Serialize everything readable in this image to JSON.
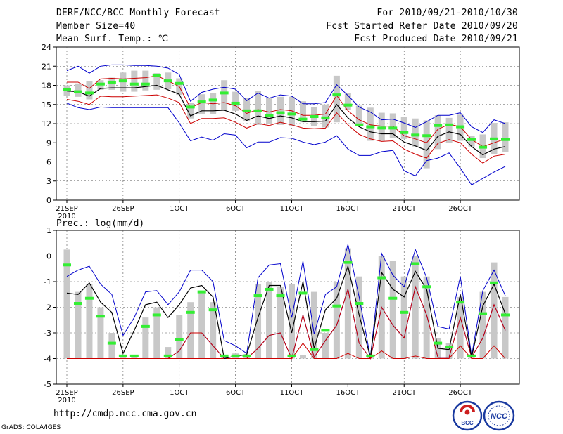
{
  "header": {
    "title": "DERF/NCC/BCC Monthly Forecast",
    "member_size": "Member Size=40",
    "variable": "Mean Surf. Temp.: ℃",
    "forecast_period": "For 2010/09/21-2010/10/30",
    "started_date": "Fcst Started Refer Date 2010/09/20",
    "produced_date": "Fcst Produced Date 2010/09/21"
  },
  "footer": {
    "url": "http://cmdp.ncc.cma.gov.cn",
    "credit": "GrADS: COLA/IGES",
    "logo_bcc": "BCC",
    "logo_ncc": "NCC"
  },
  "colors": {
    "mean": "#000000",
    "upper": "#0000cc",
    "lower": "#cc0000",
    "spread_band": "#cc0000",
    "median": "#33ee33",
    "box": "#c8c8c8"
  },
  "chart_data": [
    {
      "type": "box-ensemble",
      "title": "Mean Surf. Temp.: ℃",
      "ylabel": "",
      "ylim": [
        0,
        24
      ],
      "y_ticks": [
        0,
        3,
        6,
        9,
        12,
        15,
        18,
        21,
        24
      ],
      "xlim": [
        1,
        40
      ],
      "x_ticks": [
        {
          "day": 1,
          "label": "21SEP",
          "sublabel": "2010"
        },
        {
          "day": 6,
          "label": "26SEP"
        },
        {
          "day": 11,
          "label": "1OCT"
        },
        {
          "day": 16,
          "label": "6OCT"
        },
        {
          "day": 21,
          "label": "11OCT"
        },
        {
          "day": 26,
          "label": "16OCT"
        },
        {
          "day": 31,
          "label": "21OCT"
        },
        {
          "day": 36,
          "label": "26OCT"
        }
      ],
      "days": [
        1,
        2,
        3,
        4,
        5,
        6,
        7,
        8,
        9,
        10,
        11,
        12,
        13,
        14,
        15,
        16,
        17,
        18,
        19,
        20,
        21,
        22,
        23,
        24,
        25,
        26,
        27,
        28,
        29,
        30,
        31,
        32,
        33,
        34,
        35,
        36,
        37,
        38,
        39,
        40
      ],
      "box_low": [
        16.3,
        16.2,
        15.8,
        17.3,
        17.3,
        17.0,
        17.0,
        17.2,
        17.3,
        17.4,
        16.5,
        12.8,
        13.5,
        13.5,
        14.2,
        14.0,
        12.4,
        11.8,
        12.0,
        11.8,
        11.6,
        12.2,
        11.6,
        11.4,
        12.2,
        14.2,
        12.0,
        9.3,
        9.3,
        9.8,
        9.6,
        8.4,
        5.0,
        8.0,
        9.0,
        9.3,
        8.4,
        6.6,
        7.2,
        7.5
      ],
      "box_high": [
        18.0,
        18.3,
        18.7,
        18.8,
        19.2,
        20.0,
        20.3,
        20.3,
        19.9,
        20.0,
        19.1,
        15.2,
        16.6,
        16.8,
        18.8,
        17.0,
        16.0,
        17.1,
        16.0,
        16.2,
        16.2,
        15.5,
        14.6,
        15.0,
        19.5,
        16.8,
        14.8,
        14.5,
        13.7,
        13.6,
        13.0,
        12.8,
        12.5,
        13.3,
        12.9,
        13.4,
        10.1,
        10.3,
        12.1,
        12.2
      ],
      "median": [
        17.3,
        17.0,
        16.8,
        18.2,
        18.5,
        18.7,
        18.2,
        18.2,
        19.6,
        18.7,
        18.3,
        14.6,
        15.4,
        15.7,
        16.8,
        15.2,
        14.0,
        14.0,
        13.3,
        13.7,
        13.5,
        12.7,
        13.1,
        12.9,
        16.5,
        14.9,
        11.8,
        11.5,
        11.3,
        11.3,
        10.6,
        10.2,
        10.1,
        11.7,
        11.8,
        11.5,
        9.5,
        8.3,
        9.6,
        9.5
      ],
      "mean": [
        17.1,
        17.0,
        16.3,
        17.5,
        17.6,
        17.6,
        17.6,
        17.8,
        18.0,
        17.3,
        16.6,
        13.2,
        14.0,
        14.0,
        14.1,
        13.5,
        12.5,
        13.2,
        12.8,
        13.2,
        12.9,
        12.3,
        12.3,
        12.4,
        15.0,
        12.9,
        11.5,
        10.7,
        10.4,
        10.4,
        9.1,
        8.5,
        7.8,
        10.0,
        10.7,
        10.3,
        8.4,
        7.1,
        8.0,
        8.4
      ],
      "upper": [
        20.3,
        21.0,
        19.9,
        21.0,
        21.2,
        21.2,
        21.1,
        21.1,
        21.0,
        20.7,
        19.7,
        15.5,
        16.9,
        17.4,
        17.7,
        17.4,
        15.6,
        16.8,
        16.0,
        16.5,
        16.3,
        15.1,
        15.1,
        15.3,
        18.1,
        16.4,
        14.6,
        13.8,
        12.6,
        12.7,
        12.1,
        11.4,
        12.3,
        13.3,
        13.3,
        13.7,
        11.5,
        10.6,
        12.6,
        12.0
      ],
      "lower": [
        15.2,
        14.5,
        14.2,
        14.6,
        14.5,
        14.5,
        14.5,
        14.5,
        14.5,
        14.5,
        12.1,
        9.3,
        9.9,
        9.4,
        10.4,
        10.2,
        8.2,
        9.1,
        9.1,
        9.8,
        9.7,
        9.1,
        8.7,
        9.1,
        10.1,
        8.0,
        7.0,
        7.0,
        7.6,
        7.8,
        4.6,
        3.8,
        6.2,
        6.6,
        7.4,
        5.0,
        2.4,
        3.4,
        4.4,
        5.3
      ],
      "band_high": [
        18.5,
        18.5,
        17.5,
        19.0,
        19.1,
        19.0,
        19.1,
        19.2,
        19.5,
        18.7,
        17.8,
        14.5,
        15.3,
        15.1,
        15.3,
        14.8,
        13.6,
        14.2,
        13.8,
        14.2,
        14.0,
        13.3,
        13.3,
        13.5,
        16.4,
        14.0,
        12.6,
        11.8,
        11.6,
        11.6,
        10.1,
        9.6,
        9.0,
        11.1,
        11.9,
        11.5,
        9.5,
        8.4,
        9.0,
        9.6
      ],
      "band_low": [
        15.8,
        15.5,
        15.0,
        16.3,
        16.2,
        16.2,
        16.3,
        16.4,
        16.5,
        16.0,
        15.3,
        12.0,
        12.8,
        12.8,
        12.9,
        12.2,
        11.3,
        12.0,
        11.7,
        12.2,
        11.8,
        11.3,
        11.2,
        11.3,
        13.7,
        11.8,
        10.3,
        9.6,
        9.2,
        9.3,
        8.0,
        7.2,
        6.6,
        8.9,
        9.5,
        9.0,
        7.2,
        5.8,
        6.9,
        7.2
      ]
    },
    {
      "type": "box-ensemble",
      "title": "Prec.: log(mm/d)",
      "ylabel": "",
      "ylim": [
        -5,
        1
      ],
      "y_ticks": [
        -5,
        -4,
        -3,
        -2,
        -1,
        0,
        1
      ],
      "xlim": [
        1,
        40
      ],
      "x_ticks": [
        {
          "day": 1,
          "label": "21SEP",
          "sublabel": "2010"
        },
        {
          "day": 6,
          "label": "26SEP"
        },
        {
          "day": 11,
          "label": "1OCT"
        },
        {
          "day": 16,
          "label": "6OCT"
        },
        {
          "day": 21,
          "label": "11OCT"
        },
        {
          "day": 26,
          "label": "16OCT"
        },
        {
          "day": 31,
          "label": "21OCT"
        },
        {
          "day": 36,
          "label": "26OCT"
        }
      ],
      "days": [
        1,
        2,
        3,
        4,
        5,
        6,
        7,
        8,
        9,
        10,
        11,
        12,
        13,
        14,
        15,
        16,
        17,
        18,
        19,
        20,
        21,
        22,
        23,
        24,
        25,
        26,
        27,
        28,
        29,
        30,
        31,
        32,
        33,
        34,
        35,
        36,
        37,
        38,
        39,
        40
      ],
      "box_low": [
        -4.0,
        -4.0,
        -4.0,
        -4.0,
        -4.0,
        -4.0,
        -4.0,
        -4.0,
        -4.0,
        -4.0,
        -4.0,
        -4.0,
        -4.0,
        -4.0,
        -4.0,
        -4.0,
        -4.0,
        -4.0,
        -4.0,
        -4.0,
        -4.0,
        -4.0,
        -4.0,
        -4.0,
        -4.0,
        -4.0,
        -4.0,
        -4.0,
        -4.0,
        -4.0,
        -4.0,
        -4.0,
        -4.0,
        -4.0,
        -4.0,
        -4.0,
        -4.0,
        -4.0,
        -4.0,
        -4.0
      ],
      "box_high": [
        0.25,
        -1.4,
        -1.1,
        -2.0,
        -3.0,
        -3.9,
        -3.9,
        -2.4,
        -2.0,
        -3.55,
        -2.3,
        -1.8,
        -1.4,
        -1.8,
        -3.9,
        -3.8,
        -3.9,
        -1.1,
        -1.0,
        -1.2,
        -1.1,
        -3.85,
        -1.4,
        -3.0,
        -1.0,
        0.3,
        -0.8,
        -3.85,
        0.0,
        -0.2,
        -0.8,
        0.0,
        -0.8,
        -3.2,
        -3.4,
        -1.6,
        -3.85,
        -1.4,
        -0.25,
        -1.6
      ],
      "median": [
        -0.35,
        -1.85,
        -1.65,
        -2.35,
        -3.4,
        -3.9,
        -3.9,
        -2.75,
        -2.3,
        -3.9,
        -3.25,
        -2.2,
        -1.4,
        -2.1,
        -3.9,
        -3.9,
        -3.9,
        -1.55,
        -1.3,
        -1.55,
        -3.9,
        -1.45,
        -3.65,
        -2.9,
        -1.95,
        -0.25,
        -1.85,
        -3.9,
        -0.85,
        -1.65,
        -2.2,
        -0.3,
        -1.2,
        -3.4,
        -3.55,
        -1.8,
        -3.9,
        -2.25,
        -1.05,
        -2.3
      ],
      "mean": [
        -1.45,
        -1.5,
        -1.05,
        -1.8,
        -2.2,
        -3.8,
        -2.9,
        -1.9,
        -1.8,
        -2.4,
        -1.9,
        -1.25,
        -1.15,
        -1.6,
        -4.0,
        -3.9,
        -3.85,
        -2.4,
        -1.15,
        -1.15,
        -3.0,
        -1.0,
        -3.6,
        -2.1,
        -1.65,
        -0.4,
        -2.3,
        -3.95,
        -0.65,
        -1.3,
        -1.6,
        -0.6,
        -1.3,
        -3.6,
        -3.65,
        -1.5,
        -3.95,
        -1.95,
        -1.1,
        -2.25
      ],
      "upper": [
        -0.8,
        -0.55,
        -0.4,
        -1.1,
        -1.5,
        -3.1,
        -2.4,
        -1.4,
        -1.35,
        -1.9,
        -1.4,
        -0.55,
        -0.55,
        -1.0,
        -3.3,
        -3.5,
        -3.8,
        -0.85,
        -0.35,
        -0.3,
        -2.4,
        -0.2,
        -3.05,
        -1.5,
        -1.2,
        0.45,
        -1.6,
        -3.95,
        0.1,
        -0.75,
        -1.2,
        0.25,
        -0.85,
        -2.75,
        -2.85,
        -0.8,
        -3.9,
        -1.35,
        -0.55,
        -1.55
      ],
      "lower": [
        -4.0,
        -4.0,
        -4.0,
        -4.0,
        -4.0,
        -4.0,
        -4.0,
        -4.0,
        -4.0,
        -4.0,
        -3.7,
        -3.0,
        -3.0,
        -3.5,
        -4.0,
        -4.0,
        -4.0,
        -3.6,
        -3.1,
        -3.0,
        -4.0,
        -2.3,
        -3.95,
        -3.3,
        -2.7,
        -1.3,
        -3.4,
        -4.0,
        -2.0,
        -2.7,
        -3.2,
        -1.2,
        -2.3,
        -3.95,
        -3.95,
        -2.4,
        -3.95,
        -3.2,
        -1.9,
        -2.9
      ],
      "band_low": [
        -4.0,
        -4.0,
        -4.0,
        -4.0,
        -4.0,
        -4.0,
        -4.0,
        -4.0,
        -4.0,
        -4.0,
        -4.0,
        -4.0,
        -4.0,
        -4.0,
        -4.0,
        -4.0,
        -4.0,
        -4.0,
        -4.0,
        -4.0,
        -4.0,
        -3.4,
        -4.0,
        -4.0,
        -4.0,
        -3.8,
        -4.0,
        -4.0,
        -3.7,
        -4.0,
        -4.0,
        -3.9,
        -4.0,
        -4.0,
        -4.0,
        -3.5,
        -4.0,
        -4.0,
        -3.5,
        -4.0
      ]
    }
  ]
}
